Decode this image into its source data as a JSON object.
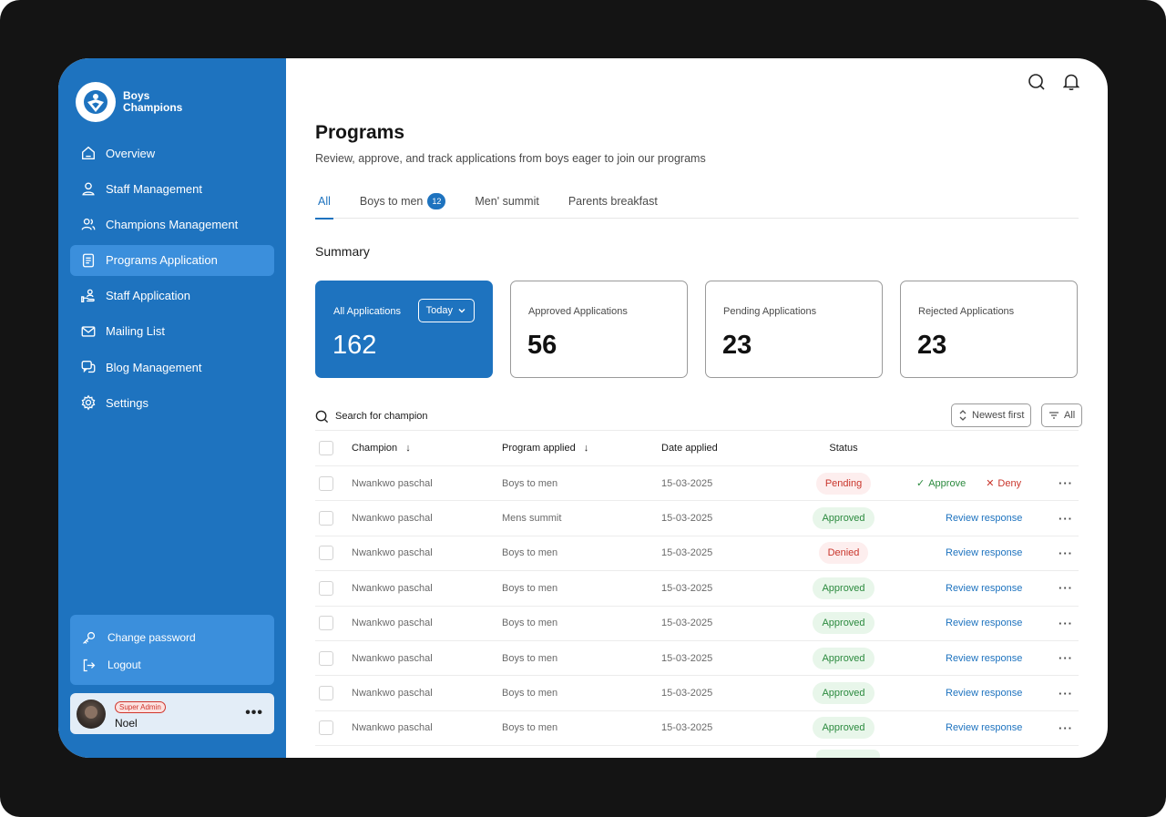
{
  "brand": {
    "line1": "Boys",
    "line2": "Champions"
  },
  "sidebar": {
    "items": [
      {
        "label": "Overview",
        "icon": "home-icon",
        "active": false
      },
      {
        "label": "Staff Management",
        "icon": "user-icon",
        "active": false
      },
      {
        "label": "Champions Management",
        "icon": "users-icon",
        "active": false
      },
      {
        "label": "Programs Application",
        "icon": "document-icon",
        "active": true
      },
      {
        "label": "Staff Application",
        "icon": "hand-user-icon",
        "active": false
      },
      {
        "label": "Mailing List",
        "icon": "mail-icon",
        "active": false
      },
      {
        "label": "Blog Management",
        "icon": "chat-icon",
        "active": false
      },
      {
        "label": "Settings",
        "icon": "gear-icon",
        "active": false
      }
    ],
    "account": {
      "change_password": "Change password",
      "logout": "Logout"
    },
    "user": {
      "role": "Super Admin",
      "name": "Noel"
    }
  },
  "header": {
    "title": "Programs",
    "subtitle": "Review, approve, and track applications from boys eager to join our programs"
  },
  "tabs": [
    {
      "label": "All",
      "active": true,
      "count": ""
    },
    {
      "label": "Boys to men",
      "active": false,
      "count": "12"
    },
    {
      "label": "Men' summit",
      "active": false,
      "count": ""
    },
    {
      "label": "Parents breakfast",
      "active": false,
      "count": ""
    }
  ],
  "summary": {
    "title": "Summary",
    "cards": [
      {
        "label": "All Applications",
        "value": "162",
        "filter": "Today"
      },
      {
        "label": "Approved Applications",
        "value": "56"
      },
      {
        "label": "Pending Applications",
        "value": "23"
      },
      {
        "label": "Rejected Applications",
        "value": "23"
      }
    ]
  },
  "toolbar": {
    "search_placeholder": "Search for champion",
    "sort_label": "Newest first",
    "filter_label": "All"
  },
  "table": {
    "headers": {
      "champion": "Champion",
      "program": "Program applied",
      "date": "Date applied",
      "status": "Status"
    },
    "actions": {
      "approve": "Approve",
      "deny": "Deny",
      "review": "Review response"
    },
    "rows": [
      {
        "champion": "Nwankwo paschal",
        "program": "Boys to men",
        "date": "15-03-2025",
        "status": "Pending"
      },
      {
        "champion": "Nwankwo paschal",
        "program": "Mens summit",
        "date": "15-03-2025",
        "status": "Approved"
      },
      {
        "champion": "Nwankwo paschal",
        "program": "Boys to men",
        "date": "15-03-2025",
        "status": "Denied"
      },
      {
        "champion": "Nwankwo paschal",
        "program": "Boys to men",
        "date": "15-03-2025",
        "status": "Approved"
      },
      {
        "champion": "Nwankwo paschal",
        "program": "Boys to men",
        "date": "15-03-2025",
        "status": "Approved"
      },
      {
        "champion": "Nwankwo paschal",
        "program": "Boys to men",
        "date": "15-03-2025",
        "status": "Approved"
      },
      {
        "champion": "Nwankwo paschal",
        "program": "Boys to men",
        "date": "15-03-2025",
        "status": "Approved"
      },
      {
        "champion": "Nwankwo paschal",
        "program": "Boys to men",
        "date": "15-03-2025",
        "status": "Approved"
      }
    ]
  },
  "colors": {
    "primary": "#1e73bf",
    "approved": "#2b8a3e",
    "denied": "#c9352b"
  }
}
